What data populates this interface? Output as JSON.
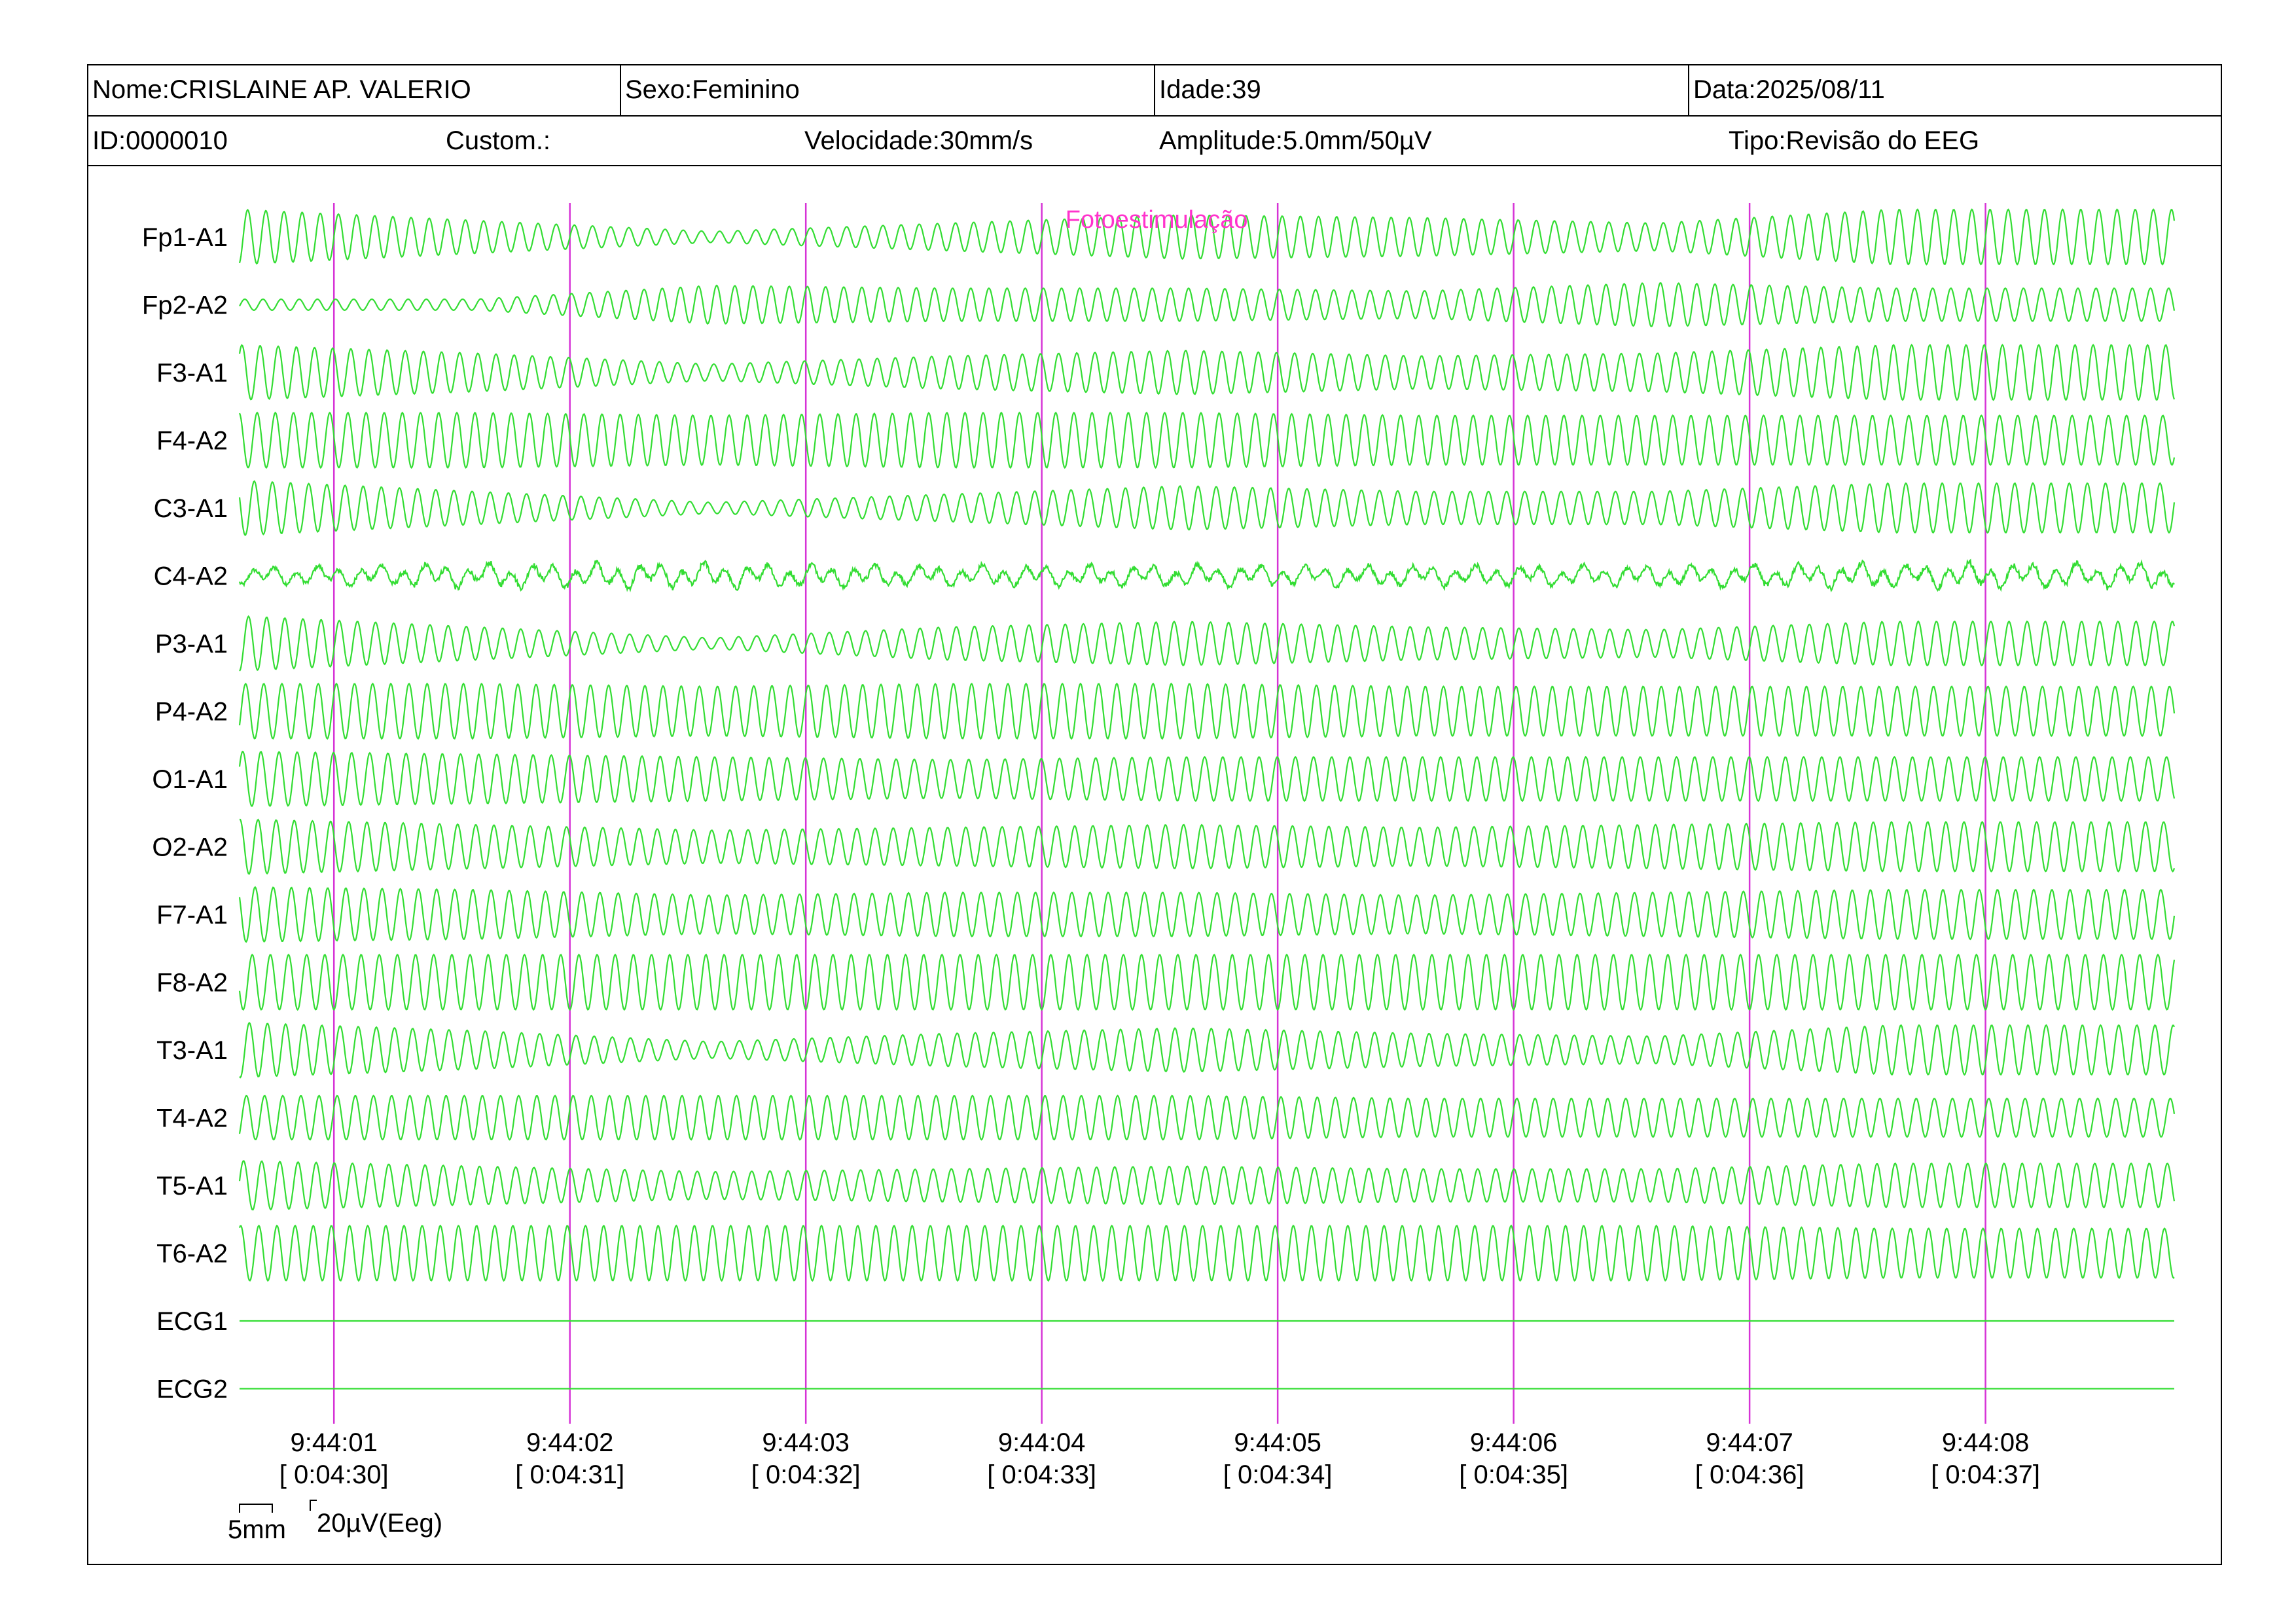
{
  "header": {
    "nome": "Nome:CRISLAINE AP. VALERIO",
    "sexo": "Sexo:Feminino",
    "idade": "Idade:39",
    "data": "Data:2025/08/11",
    "id": "ID:0000010",
    "custom": "Custom.:",
    "velocidade": "Velocidade:30mm/s",
    "amplitude": "Amplitude:5.0mm/50µV",
    "tipo": "Tipo:Revisão do EEG"
  },
  "chart_data": {
    "type": "line",
    "title": "",
    "xlabel": "",
    "ylabel": "",
    "grid": false,
    "trace_color": "#33dd33",
    "marker_color": "#d633d6",
    "annotation_color": "#ff33cc",
    "x_range_s": [
      0.6,
      8.8
    ],
    "annotation": {
      "text": "Fotoestimulação",
      "at_s": 4.1
    },
    "time_marks": [
      {
        "t": 1,
        "clock": "9:44:01",
        "elapsed": "[ 0:04:30]"
      },
      {
        "t": 2,
        "clock": "9:44:02",
        "elapsed": "[ 0:04:31]"
      },
      {
        "t": 3,
        "clock": "9:44:03",
        "elapsed": "[ 0:04:32]"
      },
      {
        "t": 4,
        "clock": "9:44:04",
        "elapsed": "[ 0:04:33]"
      },
      {
        "t": 5,
        "clock": "9:44:05",
        "elapsed": "[ 0:04:34]"
      },
      {
        "t": 6,
        "clock": "9:44:06",
        "elapsed": "[ 0:04:35]"
      },
      {
        "t": 7,
        "clock": "9:44:07",
        "elapsed": "[ 0:04:36]"
      },
      {
        "t": 8,
        "clock": "9:44:08",
        "elapsed": "[ 0:04:37]"
      }
    ],
    "series": [
      {
        "name": "Fp1-A1",
        "freq_hz": 13,
        "amp_profile": [
          1.0,
          0.6,
          0.2,
          0.5,
          0.8,
          0.7,
          0.5,
          1.0
        ]
      },
      {
        "name": "Fp2-A2",
        "freq_hz": 13,
        "amp_profile": [
          0.2,
          0.2,
          0.7,
          0.6,
          0.6,
          0.5,
          0.8,
          0.6
        ]
      },
      {
        "name": "F3-A1",
        "freq_hz": 13,
        "amp_profile": [
          1.0,
          0.7,
          0.3,
          0.6,
          0.8,
          0.6,
          0.7,
          1.0
        ]
      },
      {
        "name": "F4-A2",
        "freq_hz": 13,
        "amp_profile": [
          1.0,
          1.0,
          0.9,
          1.0,
          1.0,
          0.9,
          0.9,
          0.9
        ]
      },
      {
        "name": "C3-A1",
        "freq_hz": 13,
        "amp_profile": [
          1.0,
          0.6,
          0.2,
          0.5,
          0.8,
          0.6,
          0.6,
          0.9
        ]
      },
      {
        "name": "C4-A2",
        "freq_hz": 11,
        "amp_profile": [
          0.4,
          0.6,
          0.6,
          0.5,
          0.5,
          0.5,
          0.5,
          0.6
        ]
      },
      {
        "name": "P3-A1",
        "freq_hz": 13,
        "amp_profile": [
          1.0,
          0.6,
          0.2,
          0.6,
          0.8,
          0.6,
          0.5,
          0.8
        ]
      },
      {
        "name": "P4-A2",
        "freq_hz": 13,
        "amp_profile": [
          1.0,
          1.0,
          0.9,
          1.0,
          1.0,
          0.9,
          0.9,
          0.9
        ]
      },
      {
        "name": "O1-A1",
        "freq_hz": 13,
        "amp_profile": [
          1.0,
          0.9,
          0.8,
          0.7,
          0.8,
          0.8,
          0.8,
          0.8
        ]
      },
      {
        "name": "O2-A2",
        "freq_hz": 13,
        "amp_profile": [
          1.0,
          0.8,
          0.6,
          0.7,
          0.8,
          0.7,
          0.8,
          0.9
        ]
      },
      {
        "name": "F7-A1",
        "freq_hz": 13,
        "amp_profile": [
          1.0,
          0.9,
          0.7,
          0.8,
          0.8,
          0.7,
          0.8,
          0.9
        ]
      },
      {
        "name": "F8-A2",
        "freq_hz": 13,
        "amp_profile": [
          1.0,
          1.0,
          1.0,
          1.0,
          1.0,
          1.0,
          1.0,
          1.0
        ]
      },
      {
        "name": "T3-A1",
        "freq_hz": 13,
        "amp_profile": [
          1.0,
          0.7,
          0.3,
          0.6,
          0.8,
          0.6,
          0.5,
          0.9
        ]
      },
      {
        "name": "T4-A2",
        "freq_hz": 13,
        "amp_profile": [
          0.8,
          0.8,
          0.8,
          0.8,
          0.8,
          0.7,
          0.7,
          0.7
        ]
      },
      {
        "name": "T5-A1",
        "freq_hz": 13,
        "amp_profile": [
          0.9,
          0.7,
          0.5,
          0.6,
          0.7,
          0.6,
          0.6,
          0.8
        ]
      },
      {
        "name": "T6-A2",
        "freq_hz": 13,
        "amp_profile": [
          1.0,
          1.0,
          1.0,
          1.0,
          1.0,
          1.0,
          1.0,
          0.9
        ]
      },
      {
        "name": "ECG1",
        "freq_hz": 0,
        "amp_profile": [
          0,
          0,
          0,
          0,
          0,
          0,
          0,
          0
        ]
      },
      {
        "name": "ECG2",
        "freq_hz": 0,
        "amp_profile": [
          0,
          0,
          0,
          0,
          0,
          0,
          0,
          0
        ]
      }
    ],
    "scale_bar": {
      "time": "5mm",
      "amplitude": "20µV(Eeg)"
    }
  }
}
